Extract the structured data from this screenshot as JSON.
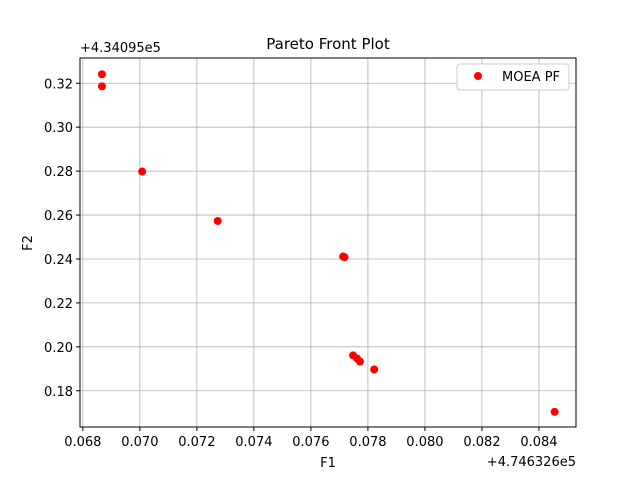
{
  "chart_data": {
    "type": "scatter",
    "title": "Pareto Front Plot",
    "xlabel": "F1",
    "ylabel": "F2",
    "x_offset_label": "+4.746326e5",
    "y_offset_label": "+4.34095e5",
    "xlim": [
      0.0679,
      0.0853
    ],
    "ylim": [
      0.1635,
      0.3315
    ],
    "xticks": [
      0.068,
      0.07,
      0.072,
      0.074,
      0.076,
      0.078,
      0.08,
      0.082,
      0.084
    ],
    "xtick_labels": [
      "0.068",
      "0.070",
      "0.072",
      "0.074",
      "0.076",
      "0.078",
      "0.080",
      "0.082",
      "0.084"
    ],
    "yticks": [
      0.18,
      0.2,
      0.22,
      0.24,
      0.26,
      0.28,
      0.3,
      0.32
    ],
    "ytick_labels": [
      "0.18",
      "0.20",
      "0.22",
      "0.24",
      "0.26",
      "0.28",
      "0.30",
      "0.32"
    ],
    "grid": true,
    "legend_position": "top-right",
    "series": [
      {
        "name": "MOEA PF",
        "color": "#ff0000",
        "marker": "circle",
        "points": [
          {
            "x": 0.06867,
            "y": 0.3241
          },
          {
            "x": 0.06867,
            "y": 0.3186
          },
          {
            "x": 0.07008,
            "y": 0.2798
          },
          {
            "x": 0.07273,
            "y": 0.2573
          },
          {
            "x": 0.07713,
            "y": 0.2411
          },
          {
            "x": 0.07718,
            "y": 0.2408
          },
          {
            "x": 0.07748,
            "y": 0.1961
          },
          {
            "x": 0.07762,
            "y": 0.1947
          },
          {
            "x": 0.07772,
            "y": 0.1933
          },
          {
            "x": 0.07822,
            "y": 0.1897
          },
          {
            "x": 0.08455,
            "y": 0.1704
          }
        ]
      }
    ]
  }
}
